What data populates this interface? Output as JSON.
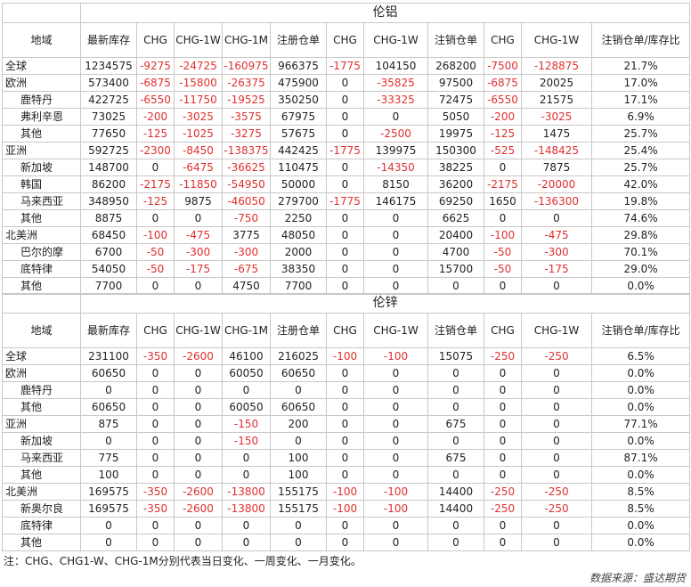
{
  "columns": [
    "地域",
    "最新库存",
    "CHG",
    "CHG-1W",
    "CHG-1M",
    "注册仓单",
    "CHG",
    "CHG-1W",
    "注销仓单",
    "CHG",
    "CHG-1W",
    "注销仓单/库存比"
  ],
  "tables": [
    {
      "title": "伦铝",
      "rows": [
        {
          "kind": "region",
          "name": "全球",
          "values": [
            "1234575",
            "-9275",
            "-24725",
            "-160975",
            "966375",
            "-1775",
            "104150",
            "268200",
            "-7500",
            "-128875",
            "21.7%"
          ]
        },
        {
          "kind": "region",
          "name": "欧洲",
          "values": [
            "573400",
            "-6875",
            "-15800",
            "-26375",
            "475900",
            "0",
            "-35825",
            "97500",
            "-6875",
            "20025",
            "17.0%"
          ]
        },
        {
          "kind": "sub",
          "name": "鹿特丹",
          "values": [
            "422725",
            "-6550",
            "-11750",
            "-19525",
            "350250",
            "0",
            "-33325",
            "72475",
            "-6550",
            "21575",
            "17.1%"
          ]
        },
        {
          "kind": "sub",
          "name": "弗利辛恩",
          "values": [
            "73025",
            "-200",
            "-3025",
            "-3575",
            "67975",
            "0",
            "0",
            "5050",
            "-200",
            "-3025",
            "6.9%"
          ]
        },
        {
          "kind": "sub",
          "name": "其他",
          "values": [
            "77650",
            "-125",
            "-1025",
            "-3275",
            "57675",
            "0",
            "-2500",
            "19975",
            "-125",
            "1475",
            "25.7%"
          ]
        },
        {
          "kind": "region",
          "name": "亚洲",
          "values": [
            "592725",
            "-2300",
            "-8450",
            "-138375",
            "442425",
            "-1775",
            "139975",
            "150300",
            "-525",
            "-148425",
            "25.4%"
          ]
        },
        {
          "kind": "sub",
          "name": "新加坡",
          "values": [
            "148700",
            "0",
            "-6475",
            "-36625",
            "110475",
            "0",
            "-14350",
            "38225",
            "0",
            "7875",
            "25.7%"
          ]
        },
        {
          "kind": "sub",
          "name": "韩国",
          "values": [
            "86200",
            "-2175",
            "-11850",
            "-54950",
            "50000",
            "0",
            "8150",
            "36200",
            "-2175",
            "-20000",
            "42.0%"
          ]
        },
        {
          "kind": "sub",
          "name": "马来西亚",
          "values": [
            "348950",
            "-125",
            "9875",
            "-46050",
            "279700",
            "-1775",
            "146175",
            "69250",
            "1650",
            "-136300",
            "19.8%"
          ]
        },
        {
          "kind": "sub",
          "name": "其他",
          "values": [
            "8875",
            "0",
            "0",
            "-750",
            "2250",
            "0",
            "0",
            "6625",
            "0",
            "0",
            "74.6%"
          ]
        },
        {
          "kind": "region",
          "name": "北美洲",
          "values": [
            "68450",
            "-100",
            "-475",
            "3775",
            "48050",
            "0",
            "0",
            "20400",
            "-100",
            "-475",
            "29.8%"
          ]
        },
        {
          "kind": "sub",
          "name": "巴尔的摩",
          "values": [
            "6700",
            "-50",
            "-300",
            "-300",
            "2000",
            "0",
            "0",
            "4700",
            "-50",
            "-300",
            "70.1%"
          ]
        },
        {
          "kind": "sub",
          "name": "底特律",
          "values": [
            "54050",
            "-50",
            "-175",
            "-675",
            "38350",
            "0",
            "0",
            "15700",
            "-50",
            "-175",
            "29.0%"
          ]
        },
        {
          "kind": "sub",
          "name": "其他",
          "values": [
            "7700",
            "0",
            "0",
            "4750",
            "7700",
            "0",
            "0",
            "0",
            "0",
            "0",
            "0.0%"
          ]
        }
      ]
    },
    {
      "title": "伦锌",
      "rows": [
        {
          "kind": "region",
          "name": "全球",
          "values": [
            "231100",
            "-350",
            "-2600",
            "46100",
            "216025",
            "-100",
            "-100",
            "15075",
            "-250",
            "-250",
            "6.5%"
          ]
        },
        {
          "kind": "region",
          "name": "欧洲",
          "values": [
            "60650",
            "0",
            "0",
            "60050",
            "60650",
            "0",
            "0",
            "0",
            "0",
            "0",
            "0.0%"
          ]
        },
        {
          "kind": "sub",
          "name": "鹿特丹",
          "values": [
            "0",
            "0",
            "0",
            "0",
            "0",
            "0",
            "0",
            "0",
            "0",
            "0",
            "0.0%"
          ]
        },
        {
          "kind": "sub",
          "name": "其他",
          "values": [
            "60650",
            "0",
            "0",
            "60050",
            "60650",
            "0",
            "0",
            "0",
            "0",
            "0",
            "0.0%"
          ]
        },
        {
          "kind": "region",
          "name": "亚洲",
          "values": [
            "875",
            "0",
            "0",
            "-150",
            "200",
            "0",
            "0",
            "675",
            "0",
            "0",
            "77.1%"
          ]
        },
        {
          "kind": "sub",
          "name": "新加坡",
          "values": [
            "0",
            "0",
            "0",
            "-150",
            "0",
            "0",
            "0",
            "0",
            "0",
            "0",
            "0.0%"
          ]
        },
        {
          "kind": "sub",
          "name": "马来西亚",
          "values": [
            "775",
            "0",
            "0",
            "0",
            "100",
            "0",
            "0",
            "675",
            "0",
            "0",
            "87.1%"
          ]
        },
        {
          "kind": "sub",
          "name": "其他",
          "values": [
            "100",
            "0",
            "0",
            "0",
            "100",
            "0",
            "0",
            "0",
            "0",
            "0",
            "0.0%"
          ]
        },
        {
          "kind": "region",
          "name": "北美洲",
          "values": [
            "169575",
            "-350",
            "-2600",
            "-13800",
            "155175",
            "-100",
            "-100",
            "14400",
            "-250",
            "-250",
            "8.5%"
          ]
        },
        {
          "kind": "sub",
          "name": "新奥尔良",
          "values": [
            "169575",
            "-350",
            "-2600",
            "-13800",
            "155175",
            "-100",
            "-100",
            "14400",
            "-250",
            "-250",
            "8.5%"
          ]
        },
        {
          "kind": "sub",
          "name": "底特律",
          "values": [
            "0",
            "0",
            "0",
            "0",
            "0",
            "0",
            "0",
            "0",
            "0",
            "0",
            "0.0%"
          ]
        },
        {
          "kind": "sub",
          "name": "其他",
          "values": [
            "0",
            "0",
            "0",
            "0",
            "0",
            "0",
            "0",
            "0",
            "0",
            "0",
            "0.0%"
          ]
        }
      ]
    }
  ],
  "note": "注：CHG、CHG1-W、CHG-1M分别代表当日变化、一周变化、一月变化。",
  "source": "数据来源：盛达期货",
  "negative_color": "#e03030"
}
